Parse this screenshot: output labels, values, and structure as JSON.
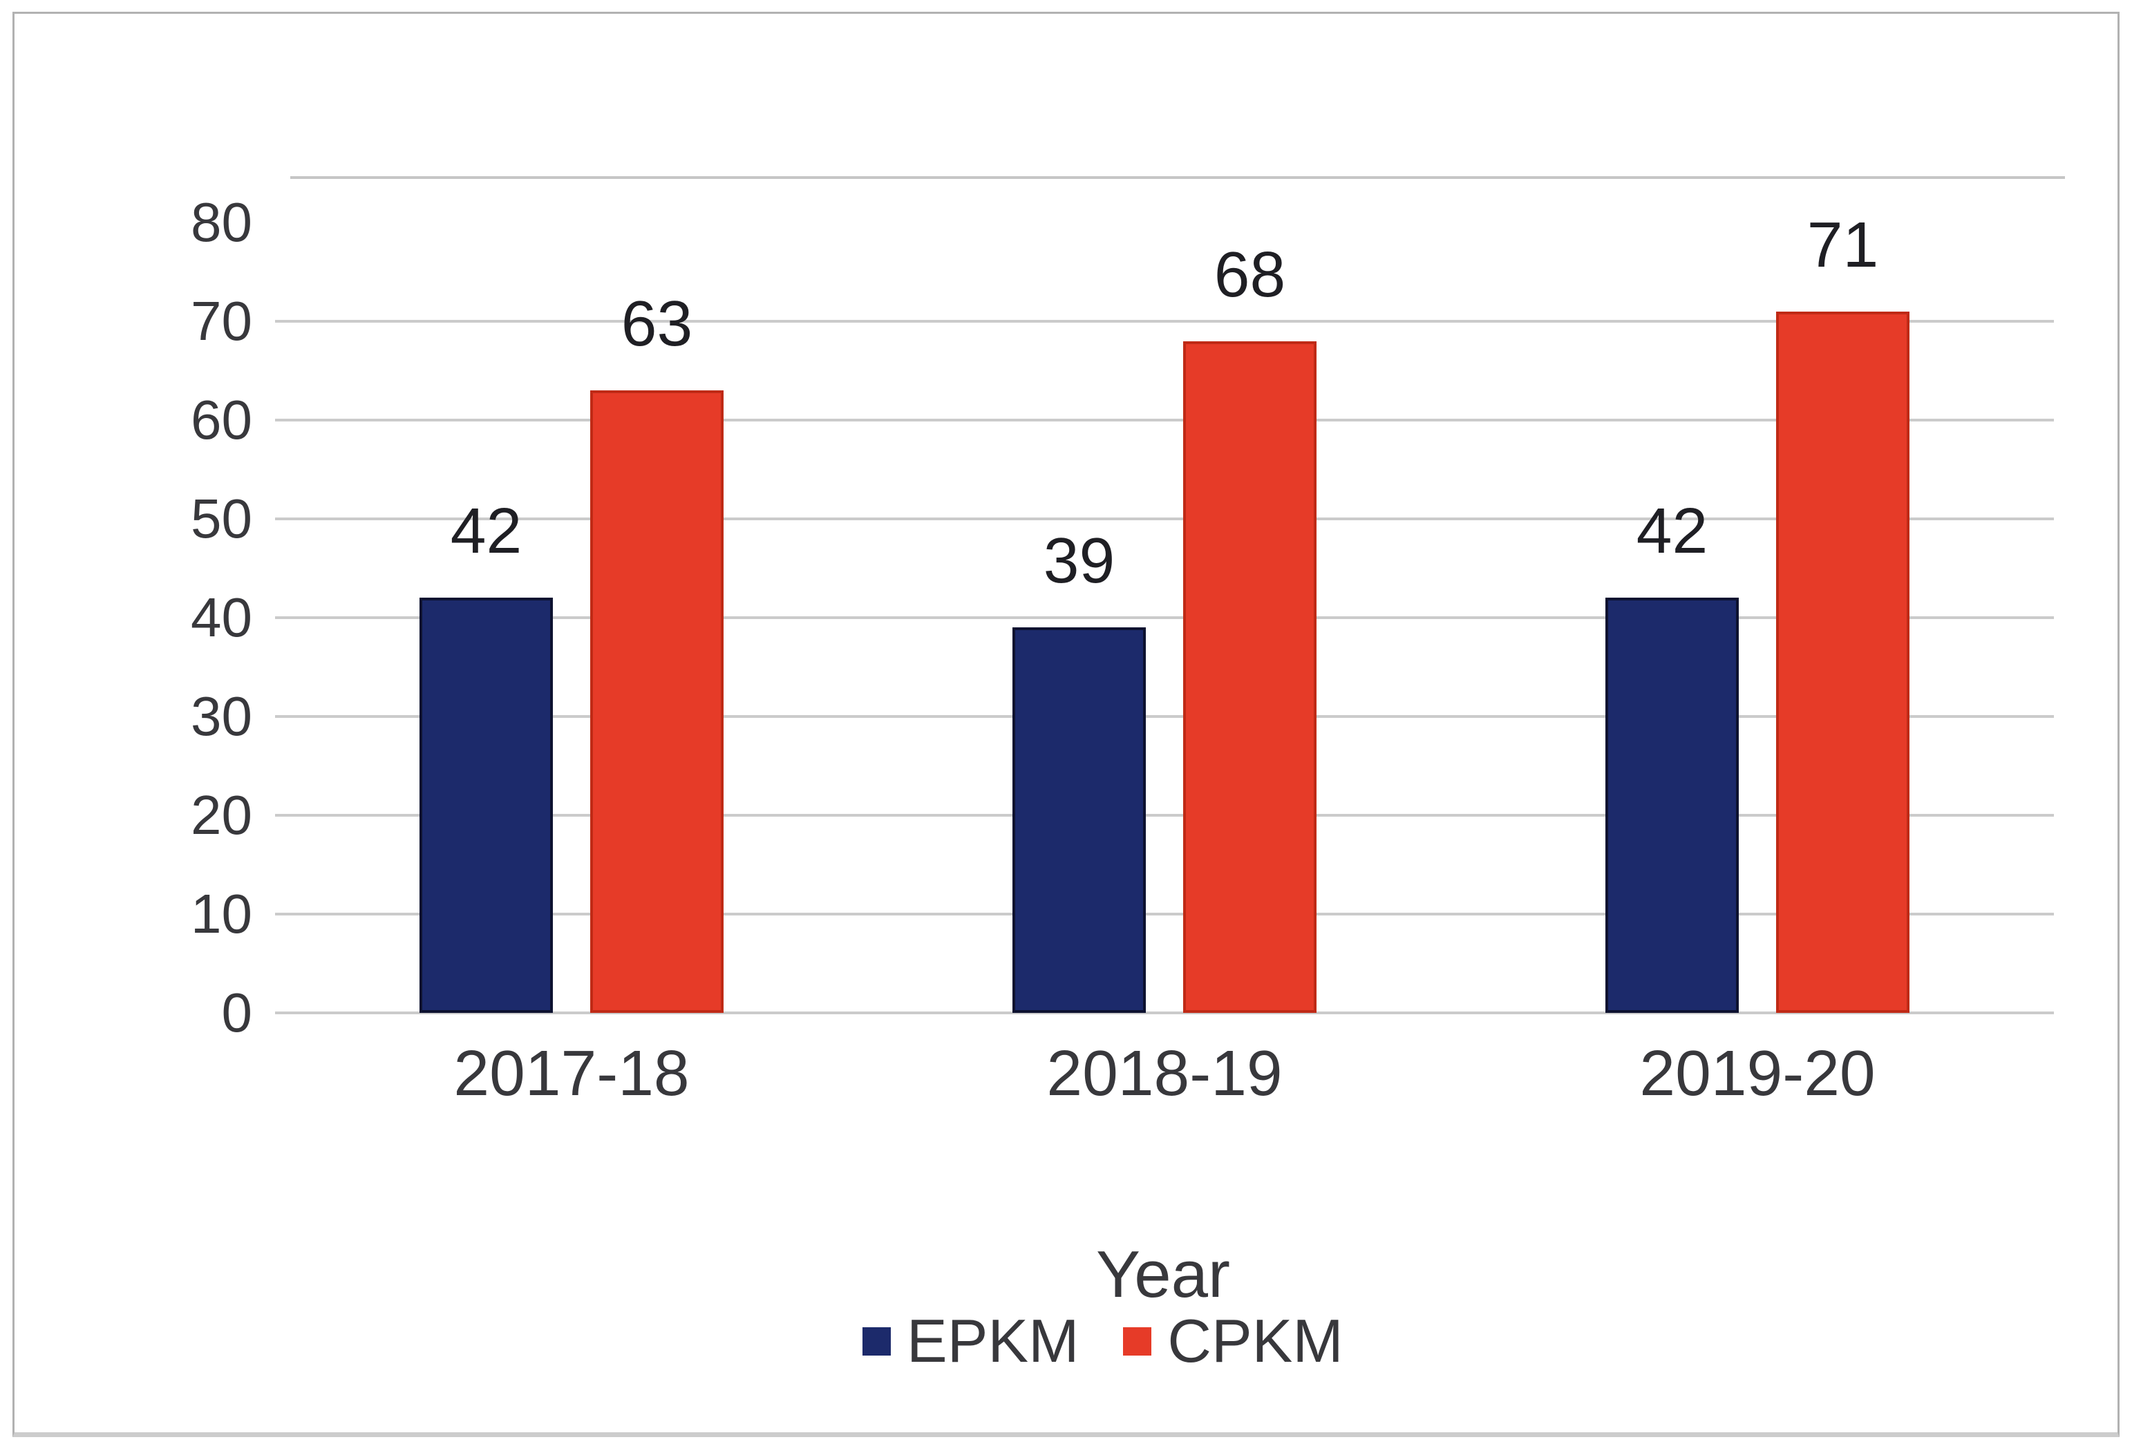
{
  "chart_data": {
    "type": "bar",
    "title": "",
    "xlabel": "Year",
    "ylabel": "",
    "categories": [
      "2017-18",
      "2018-19",
      "2019-20"
    ],
    "series": [
      {
        "name": "EPKM",
        "color": "#1c2a6b",
        "edge_color": "#0d1230",
        "values": [
          42,
          39,
          42
        ]
      },
      {
        "name": "CPKM",
        "color": "#e63b28",
        "edge_color": "#bf2a16",
        "values": [
          63,
          68,
          71
        ]
      }
    ],
    "data_labels": [
      42,
      63,
      39,
      68,
      42,
      71
    ],
    "ylim": [
      0,
      84.5
    ],
    "yticks": [
      0,
      10,
      20,
      30,
      40,
      50,
      60,
      70,
      80
    ],
    "gridline_max_tick": 70,
    "grid": true,
    "legend_position": "bottom"
  },
  "colors": {
    "grid": "#cbcbcb",
    "plot_top_line": "#c6c6c6",
    "axis_label_text": "#38383c",
    "data_label_text": "#1f1f24",
    "outer_border": "#b2b2b2"
  }
}
